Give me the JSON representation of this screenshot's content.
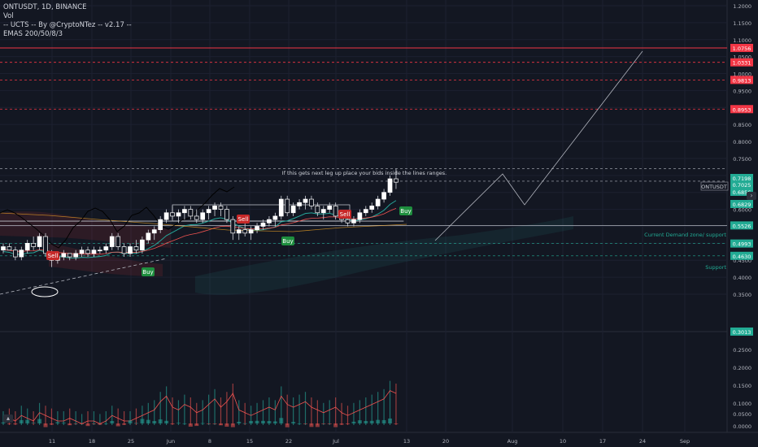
{
  "legend": {
    "symbol_line": "ONTUSDT, 1D, BINANCE",
    "vol_line": "Vol",
    "indicator_line": "-- UCTS -- By @CryptoNTez -- v2.17 --",
    "ema_line": "EMAS 200/50/8/3"
  },
  "annotations": {
    "main_note": "If this gets next leg up place your bids inside the lines ranges.",
    "demand_zone": "Current Demand zone/ support",
    "support": "Support"
  },
  "signals": [
    {
      "text": "Sell",
      "type": "sell"
    },
    {
      "text": "Buy",
      "type": "buy"
    },
    {
      "text": "Sell",
      "type": "sell"
    },
    {
      "text": "Buy",
      "type": "buy"
    },
    {
      "text": "Sell",
      "type": "sell"
    },
    {
      "text": "Buy",
      "type": "buy"
    }
  ],
  "price_axis": {
    "ticks": [
      "1.2000",
      "1.1500",
      "1.1000",
      "1.0500",
      "1.0000",
      "0.9500",
      "0.8500",
      "0.8000",
      "0.7500",
      "0.6500",
      "0.6000",
      "0.5500",
      "0.4500",
      "0.4000",
      "0.3500"
    ],
    "labels": [
      {
        "text": "1.0756",
        "color": "#f23645"
      },
      {
        "text": "1.0331",
        "color": "#f23645"
      },
      {
        "text": "0.9813",
        "color": "#f23645"
      },
      {
        "text": "0.8953",
        "color": "#f23645"
      },
      {
        "text": "0.7198",
        "color": "#22ab94"
      },
      {
        "text": "0.7025",
        "color": "#22ab94"
      },
      {
        "text": "0.6856",
        "color": "#22ab94"
      },
      {
        "text": "0.6829",
        "color": "#22ab94"
      },
      {
        "text": "0.5526",
        "color": "#22ab94"
      },
      {
        "text": "0.4993",
        "color": "#22ab94"
      },
      {
        "text": "0.4630",
        "color": "#22ab94"
      },
      {
        "text": "0.3013",
        "color": "#22ab94"
      }
    ],
    "symbol_tag": "ONTUSDT",
    "lower_ticks": [
      "0.2500",
      "0.2000",
      "0.1500",
      "0.1000",
      "0.0500",
      "0.0000"
    ]
  },
  "time_axis": [
    "11",
    "18",
    "25",
    "Jun",
    "8",
    "15",
    "22",
    "Jul",
    "13",
    "20",
    "Aug",
    "10",
    "17",
    "24",
    "Sep"
  ],
  "colors": {
    "background": "#131722",
    "up": "#ffffff",
    "down": "#ffffff",
    "ema_fast": "#26a69a",
    "ema_slow": "#ef5350",
    "resistance": "#f23645",
    "projection": "#b2b5be"
  },
  "chart_data": {
    "type": "candlestick",
    "symbol": "ONTUSDT",
    "interval": "1D",
    "exchange": "BINANCE",
    "price_range": [
      0.35,
      1.2
    ],
    "volume_axis_range": [
      0,
      0.25
    ],
    "resistance_levels": [
      1.0756,
      1.0331,
      0.9813,
      0.8953
    ],
    "support_levels": [
      0.5526,
      0.4993,
      0.463
    ],
    "last_price_labels": [
      0.7198,
      0.7025,
      0.6856,
      0.6829
    ],
    "candles": [
      [
        0.48,
        0.5,
        0.47,
        0.49
      ],
      [
        0.49,
        0.5,
        0.48,
        0.48
      ],
      [
        0.48,
        0.49,
        0.45,
        0.46
      ],
      [
        0.46,
        0.49,
        0.45,
        0.48
      ],
      [
        0.48,
        0.51,
        0.47,
        0.5
      ],
      [
        0.5,
        0.52,
        0.48,
        0.49
      ],
      [
        0.49,
        0.53,
        0.48,
        0.52
      ],
      [
        0.52,
        0.53,
        0.46,
        0.47
      ],
      [
        0.47,
        0.48,
        0.43,
        0.45
      ],
      [
        0.45,
        0.47,
        0.44,
        0.46
      ],
      [
        0.46,
        0.48,
        0.45,
        0.47
      ],
      [
        0.47,
        0.47,
        0.45,
        0.46
      ],
      [
        0.46,
        0.48,
        0.45,
        0.47
      ],
      [
        0.47,
        0.49,
        0.46,
        0.48
      ],
      [
        0.48,
        0.49,
        0.46,
        0.47
      ],
      [
        0.47,
        0.49,
        0.46,
        0.48
      ],
      [
        0.48,
        0.49,
        0.47,
        0.48
      ],
      [
        0.48,
        0.5,
        0.47,
        0.49
      ],
      [
        0.49,
        0.53,
        0.48,
        0.52
      ],
      [
        0.52,
        0.53,
        0.48,
        0.49
      ],
      [
        0.49,
        0.5,
        0.46,
        0.47
      ],
      [
        0.47,
        0.5,
        0.46,
        0.49
      ],
      [
        0.49,
        0.51,
        0.47,
        0.48
      ],
      [
        0.48,
        0.52,
        0.47,
        0.51
      ],
      [
        0.51,
        0.54,
        0.5,
        0.53
      ],
      [
        0.53,
        0.55,
        0.51,
        0.54
      ],
      [
        0.54,
        0.58,
        0.53,
        0.57
      ],
      [
        0.57,
        0.6,
        0.56,
        0.59
      ],
      [
        0.59,
        0.61,
        0.57,
        0.58
      ],
      [
        0.58,
        0.6,
        0.56,
        0.59
      ],
      [
        0.59,
        0.61,
        0.57,
        0.6
      ],
      [
        0.6,
        0.61,
        0.57,
        0.58
      ],
      [
        0.58,
        0.6,
        0.56,
        0.57
      ],
      [
        0.57,
        0.6,
        0.56,
        0.59
      ],
      [
        0.59,
        0.61,
        0.57,
        0.6
      ],
      [
        0.6,
        0.62,
        0.58,
        0.61
      ],
      [
        0.61,
        0.62,
        0.58,
        0.6
      ],
      [
        0.6,
        0.61,
        0.56,
        0.57
      ],
      [
        0.57,
        0.58,
        0.51,
        0.53
      ],
      [
        0.53,
        0.55,
        0.51,
        0.54
      ],
      [
        0.54,
        0.56,
        0.52,
        0.53
      ],
      [
        0.53,
        0.55,
        0.51,
        0.54
      ],
      [
        0.54,
        0.56,
        0.53,
        0.55
      ],
      [
        0.55,
        0.57,
        0.54,
        0.56
      ],
      [
        0.56,
        0.58,
        0.55,
        0.57
      ],
      [
        0.57,
        0.59,
        0.55,
        0.58
      ],
      [
        0.58,
        0.64,
        0.57,
        0.63
      ],
      [
        0.63,
        0.64,
        0.58,
        0.59
      ],
      [
        0.59,
        0.62,
        0.58,
        0.61
      ],
      [
        0.61,
        0.63,
        0.6,
        0.62
      ],
      [
        0.62,
        0.64,
        0.6,
        0.63
      ],
      [
        0.63,
        0.64,
        0.6,
        0.61
      ],
      [
        0.61,
        0.62,
        0.58,
        0.59
      ],
      [
        0.59,
        0.61,
        0.57,
        0.6
      ],
      [
        0.6,
        0.62,
        0.59,
        0.61
      ],
      [
        0.61,
        0.62,
        0.57,
        0.58
      ],
      [
        0.58,
        0.59,
        0.56,
        0.57
      ],
      [
        0.57,
        0.58,
        0.55,
        0.56
      ],
      [
        0.56,
        0.58,
        0.55,
        0.57
      ],
      [
        0.57,
        0.6,
        0.56,
        0.59
      ],
      [
        0.59,
        0.61,
        0.58,
        0.6
      ],
      [
        0.6,
        0.62,
        0.59,
        0.61
      ],
      [
        0.61,
        0.64,
        0.6,
        0.63
      ],
      [
        0.63,
        0.66,
        0.62,
        0.65
      ],
      [
        0.65,
        0.7,
        0.64,
        0.69
      ],
      [
        0.69,
        0.72,
        0.66,
        0.68
      ]
    ],
    "volume": [
      0.05,
      0.06,
      0.05,
      0.07,
      0.06,
      0.05,
      0.08,
      0.07,
      0.06,
      0.05,
      0.05,
      0.06,
      0.05,
      0.04,
      0.05,
      0.05,
      0.04,
      0.05,
      0.07,
      0.06,
      0.05,
      0.05,
      0.06,
      0.07,
      0.08,
      0.09,
      0.12,
      0.14,
      0.1,
      0.09,
      0.11,
      0.1,
      0.08,
      0.09,
      0.11,
      0.13,
      0.1,
      0.12,
      0.15,
      0.09,
      0.08,
      0.07,
      0.08,
      0.09,
      0.1,
      0.09,
      0.14,
      0.11,
      0.1,
      0.11,
      0.12,
      0.1,
      0.09,
      0.08,
      0.09,
      0.1,
      0.08,
      0.07,
      0.08,
      0.09,
      0.1,
      0.11,
      0.12,
      0.13,
      0.16,
      0.15
    ]
  }
}
